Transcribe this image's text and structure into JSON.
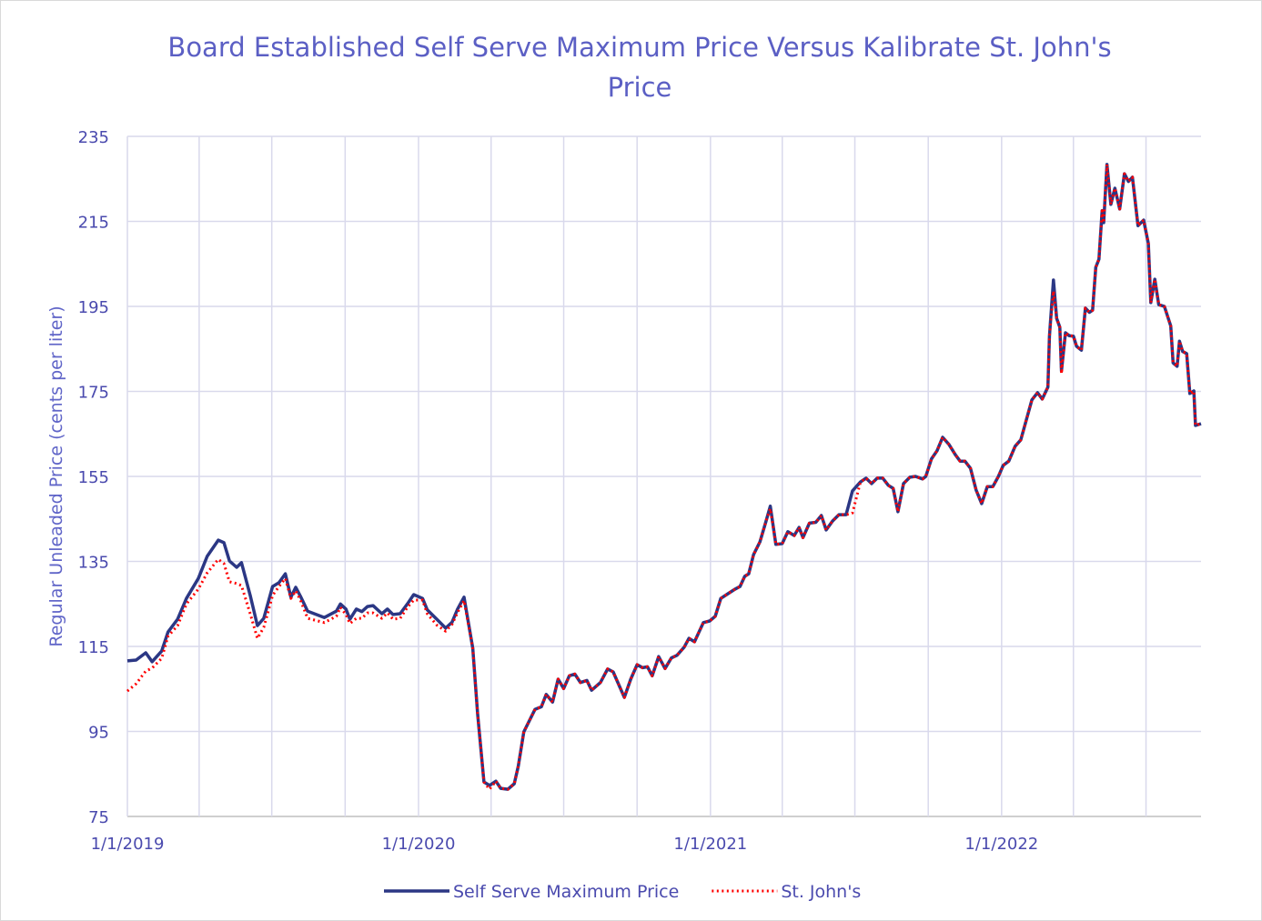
{
  "chart_data": {
    "type": "line",
    "title": "Board Established Self Serve Maximum Price Versus Kalibrate St. John's Price",
    "y_label": "Regular Unleaded Price (cents per liter)",
    "x": [
      "2019-01-01",
      "2019-01-12",
      "2019-01-24",
      "2019-02-01",
      "2019-02-13",
      "2019-02-21",
      "2019-03-05",
      "2019-03-16",
      "2019-03-31",
      "2019-04-11",
      "2019-04-25",
      "2019-05-02",
      "2019-05-09",
      "2019-05-18",
      "2019-05-24",
      "2019-06-04",
      "2019-06-13",
      "2019-06-21",
      "2019-07-02",
      "2019-07-10",
      "2019-07-18",
      "2019-07-25",
      "2019-07-31",
      "2019-08-06",
      "2019-08-15",
      "2019-09-05",
      "2019-09-20",
      "2019-09-25",
      "2019-10-02",
      "2019-10-07",
      "2019-10-15",
      "2019-10-22",
      "2019-10-29",
      "2019-11-05",
      "2019-11-16",
      "2019-11-23",
      "2019-11-30",
      "2019-12-09",
      "2019-12-18",
      "2019-12-26",
      "2020-01-06",
      "2020-01-12",
      "2020-01-24",
      "2020-02-04",
      "2020-02-12",
      "2020-02-19",
      "2020-02-27",
      "2020-03-09",
      "2020-03-15",
      "2020-03-23",
      "2020-03-30",
      "2020-04-07",
      "2020-04-13",
      "2020-04-22",
      "2020-04-30",
      "2020-05-05",
      "2020-05-12",
      "2020-05-26",
      "2020-06-03",
      "2020-06-09",
      "2020-06-17",
      "2020-06-24",
      "2020-07-01",
      "2020-07-08",
      "2020-07-15",
      "2020-07-22",
      "2020-07-30",
      "2020-08-05",
      "2020-08-16",
      "2020-08-25",
      "2020-09-01",
      "2020-09-15",
      "2020-09-23",
      "2020-10-01",
      "2020-10-08",
      "2020-10-14",
      "2020-10-20",
      "2020-10-28",
      "2020-11-05",
      "2020-11-13",
      "2020-11-20",
      "2020-11-29",
      "2020-12-05",
      "2020-12-12",
      "2020-12-23",
      "2020-12-31",
      "2021-01-07",
      "2021-01-14",
      "2021-01-23",
      "2021-02-01",
      "2021-02-07",
      "2021-02-13",
      "2021-02-18",
      "2021-02-24",
      "2021-03-04",
      "2021-03-12",
      "2021-03-17",
      "2021-03-24",
      "2021-04-01",
      "2021-04-08",
      "2021-04-16",
      "2021-04-22",
      "2021-04-27",
      "2021-05-05",
      "2021-05-13",
      "2021-05-20",
      "2021-05-26",
      "2021-06-03",
      "2021-06-11",
      "2021-06-20",
      "2021-06-28",
      "2021-07-08",
      "2021-07-15",
      "2021-07-22",
      "2021-07-29",
      "2021-08-05",
      "2021-08-12",
      "2021-08-18",
      "2021-08-24",
      "2021-08-31",
      "2021-09-08",
      "2021-09-15",
      "2021-09-24",
      "2021-09-28",
      "2021-10-05",
      "2021-10-12",
      "2021-10-19",
      "2021-10-27",
      "2021-11-04",
      "2021-11-10",
      "2021-11-16",
      "2021-11-23",
      "2021-11-30",
      "2021-12-07",
      "2021-12-14",
      "2021-12-21",
      "2021-12-28",
      "2022-01-03",
      "2022-01-10",
      "2022-01-18",
      "2022-01-25",
      "2022-02-01",
      "2022-02-08",
      "2022-02-15",
      "2022-02-21",
      "2022-02-28",
      "2022-03-02",
      "2022-03-07",
      "2022-03-11",
      "2022-03-15",
      "2022-03-17",
      "2022-03-22",
      "2022-03-27",
      "2022-04-01",
      "2022-04-05",
      "2022-04-11",
      "2022-04-16",
      "2022-04-21",
      "2022-04-25",
      "2022-04-29",
      "2022-05-03",
      "2022-05-07",
      "2022-05-09",
      "2022-05-13",
      "2022-05-18",
      "2022-05-23",
      "2022-05-29",
      "2022-06-04",
      "2022-06-09",
      "2022-06-14",
      "2022-06-21",
      "2022-06-28",
      "2022-07-04",
      "2022-07-07",
      "2022-07-12",
      "2022-07-17",
      "2022-07-24",
      "2022-08-01",
      "2022-08-04",
      "2022-08-09",
      "2022-08-12",
      "2022-08-16",
      "2022-08-21",
      "2022-08-25",
      "2022-08-30",
      "2022-09-01",
      "2022-09-08"
    ],
    "series": [
      {
        "name": "Self Serve Maximum Price",
        "color": "#2b3784",
        "style": "solid",
        "values": [
          111.6,
          111.8,
          113.5,
          111.4,
          113.9,
          118.4,
          121.4,
          126.3,
          131,
          136.2,
          140,
          139.4,
          135.1,
          133.6,
          134.7,
          127,
          119.9,
          121.6,
          129.1,
          130,
          132.1,
          126.6,
          128.9,
          126.8,
          123.3,
          121.8,
          123.3,
          125,
          123.8,
          121.4,
          123.8,
          123.2,
          124.4,
          124.6,
          122.7,
          123.8,
          122.5,
          122.7,
          125,
          127.2,
          126.3,
          123.6,
          121.4,
          119.3,
          120.7,
          123.8,
          126.6,
          114.6,
          99.2,
          83.1,
          82.3,
          83.3,
          81.6,
          81.4,
          82.7,
          86.8,
          94.9,
          100.2,
          100.8,
          103.7,
          101.9,
          107.3,
          105.1,
          108.1,
          108.5,
          106.5,
          107,
          104.7,
          106.5,
          109.7,
          109,
          103,
          107.3,
          110.7,
          110,
          110.2,
          108.1,
          112.6,
          109.8,
          112.3,
          112.9,
          114.8,
          116.9,
          116.1,
          120.6,
          121,
          122.1,
          126.3,
          127.4,
          128.5,
          129.1,
          131.5,
          132.1,
          136.6,
          139.6,
          144.7,
          148,
          139,
          139.2,
          142,
          141.1,
          143,
          140.6,
          144,
          144.2,
          145.8,
          142.4,
          144.5,
          146,
          146,
          151.6,
          153.7,
          154.6,
          153.3,
          154.6,
          154.6,
          152.9,
          152.2,
          146.7,
          153.3,
          154.8,
          155,
          154.4,
          155,
          159.1,
          161,
          164.2,
          162.5,
          160.1,
          158.6,
          158.6,
          156.9,
          151.8,
          148.6,
          152.6,
          152.6,
          155,
          157.6,
          158.6,
          162.1,
          163.6,
          168.3,
          173,
          174.7,
          173.2,
          176,
          188,
          201.2,
          192.2,
          190.1,
          179.8,
          188.8,
          188.1,
          188,
          185.6,
          184.7,
          194.6,
          193.6,
          194.1,
          204.2,
          206.1,
          217.5,
          214.7,
          228.4,
          219,
          222.8,
          217.9,
          226.2,
          224.4,
          225.4,
          214,
          215.3,
          209.8,
          195.9,
          201.4,
          195.4,
          195,
          190.4,
          181.7,
          180.9,
          186.8,
          184.4,
          183.9,
          174.5,
          175.1,
          167,
          167.4
        ]
      },
      {
        "name": "St. John's",
        "color": "#ff0000",
        "style": "dotted",
        "values": [
          104.5,
          106.2,
          109.2,
          109.9,
          112.2,
          117.4,
          119.9,
          125,
          128.5,
          132.3,
          135.5,
          134.5,
          130.2,
          129.8,
          129.3,
          122.7,
          116.9,
          119.5,
          127,
          129.1,
          131,
          126.3,
          128.1,
          125.9,
          121.6,
          120.6,
          122.1,
          124.2,
          122.5,
          120.4,
          121.6,
          121.6,
          122.9,
          122.9,
          121.6,
          122.9,
          121.4,
          121.6,
          124.2,
          125.9,
          125.9,
          122.7,
          120,
          118.6,
          120.2,
          123,
          125.8,
          114.6,
          99.2,
          83.1,
          81.4,
          83.3,
          81.6,
          81.4,
          82.7,
          86.8,
          94.9,
          100.2,
          100.8,
          103.7,
          101.9,
          107.3,
          105.1,
          108.1,
          108.5,
          106.5,
          107,
          104.7,
          106.5,
          109.7,
          109,
          103,
          107.3,
          110.7,
          110,
          110.2,
          108.1,
          112.6,
          109.8,
          112.3,
          112.9,
          114.8,
          116.9,
          116.1,
          120.6,
          121,
          122.1,
          126.3,
          127.4,
          128.5,
          129.1,
          131.5,
          132.1,
          136.6,
          139.6,
          144.7,
          147.4,
          139,
          139.2,
          142,
          141.1,
          143,
          140.6,
          144,
          144.2,
          145.8,
          142.4,
          144.5,
          146,
          146,
          146.4,
          153.7,
          154.6,
          153.3,
          154.6,
          154.6,
          152.9,
          152.2,
          146.7,
          153.3,
          154.8,
          155,
          154.4,
          155,
          159.1,
          161,
          164.2,
          162.5,
          160.1,
          158.6,
          158.6,
          156.9,
          151.8,
          148.6,
          152.6,
          152.6,
          155,
          157.6,
          158.6,
          162.1,
          163.6,
          168.3,
          173,
          174.7,
          173.2,
          176,
          188,
          198.6,
          192.2,
          190.1,
          179.2,
          188.8,
          188.1,
          188,
          185.6,
          184.7,
          194.6,
          193.6,
          194.1,
          204.2,
          206.1,
          217.5,
          214.7,
          228.4,
          219,
          222.8,
          217.9,
          226.2,
          224.4,
          225.4,
          214,
          215.3,
          209.8,
          195.9,
          201.4,
          195.4,
          195,
          190.4,
          181.7,
          180.9,
          186.8,
          184.4,
          183.9,
          174.5,
          175.1,
          167,
          167.4
        ]
      }
    ],
    "xlim": [
      "2019-01-01",
      "2022-09-08"
    ],
    "xticks": [
      {
        "value": "2019-01-01",
        "label": "1/1/2019"
      },
      {
        "value": "2019-04-01",
        "label": null
      },
      {
        "value": "2019-07-01",
        "label": null
      },
      {
        "value": "2019-10-01",
        "label": null
      },
      {
        "value": "2020-01-01",
        "label": "1/1/2020"
      },
      {
        "value": "2020-04-01",
        "label": null
      },
      {
        "value": "2020-07-01",
        "label": null
      },
      {
        "value": "2020-10-01",
        "label": null
      },
      {
        "value": "2021-01-01",
        "label": "1/1/2021"
      },
      {
        "value": "2021-04-01",
        "label": null
      },
      {
        "value": "2021-07-01",
        "label": null
      },
      {
        "value": "2021-10-01",
        "label": null
      },
      {
        "value": "2022-01-01",
        "label": "1/1/2022"
      },
      {
        "value": "2022-04-01",
        "label": null
      },
      {
        "value": "2022-07-01",
        "label": null
      }
    ],
    "ylim": [
      75,
      235
    ],
    "yticks": [
      75,
      95,
      115,
      135,
      155,
      175,
      195,
      215,
      235
    ],
    "grid": true,
    "legend": "bottom"
  }
}
